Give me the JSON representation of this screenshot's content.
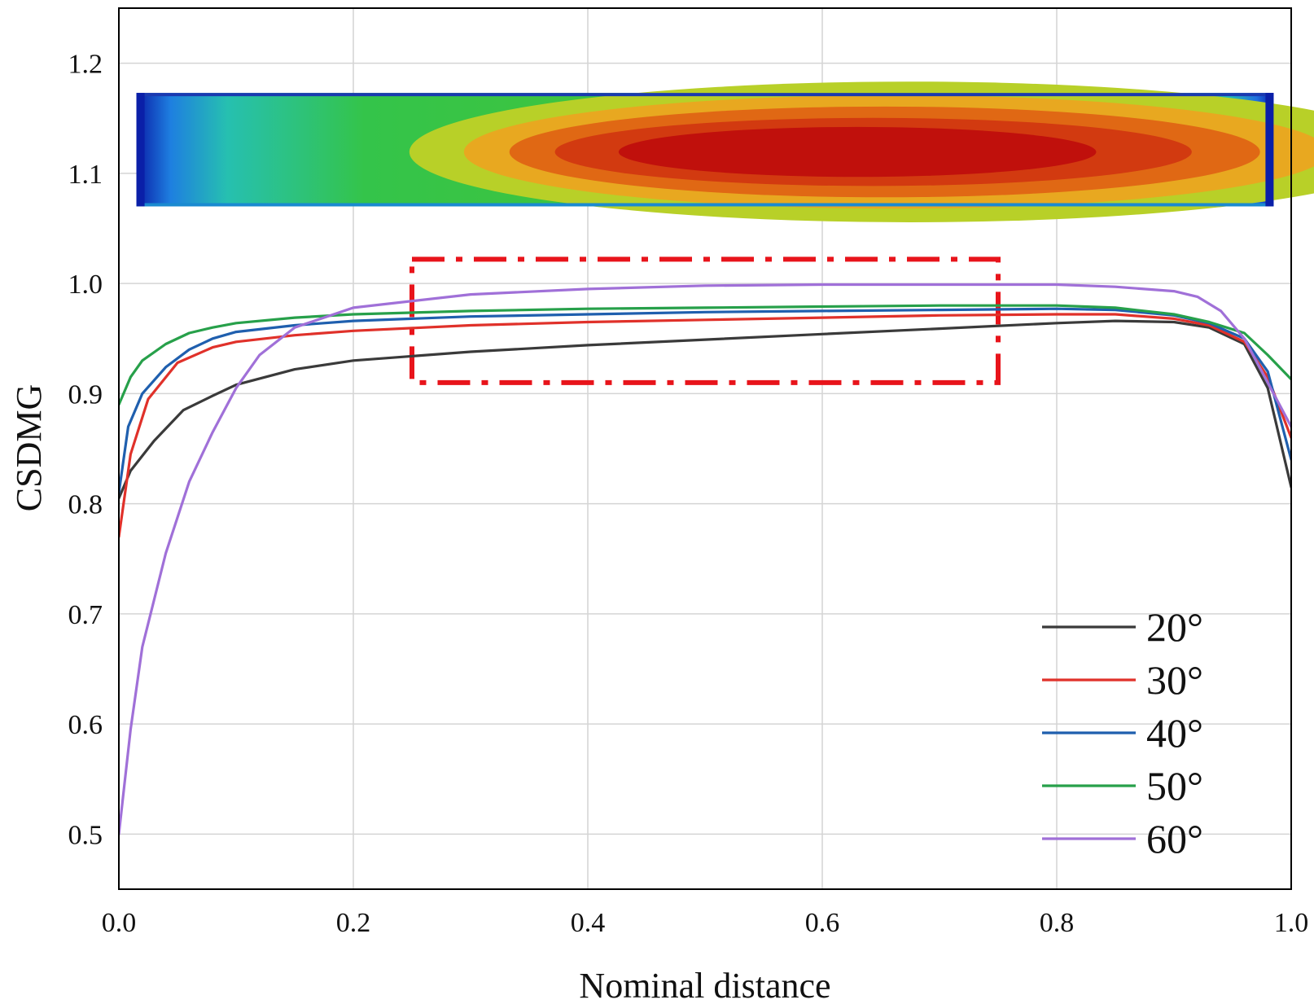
{
  "chart_data": {
    "type": "line",
    "xlabel": "Nominal distance",
    "ylabel": "CSDMG",
    "xlim": [
      0.0,
      1.0
    ],
    "ylim": [
      0.45,
      1.25
    ],
    "xticks": [
      "0.0",
      "0.2",
      "0.4",
      "0.6",
      "0.8",
      "1.0"
    ],
    "yticks": [
      "0.5",
      "0.6",
      "0.7",
      "0.8",
      "0.9",
      "1.0",
      "1.1",
      "1.2"
    ],
    "grid": true,
    "legend_position": "bottom-right",
    "series": [
      {
        "name": "20°",
        "color": "#3a3a3a",
        "x": [
          0.0,
          0.01,
          0.03,
          0.055,
          0.08,
          0.1,
          0.15,
          0.2,
          0.3,
          0.4,
          0.5,
          0.6,
          0.7,
          0.8,
          0.85,
          0.9,
          0.93,
          0.96,
          0.98,
          1.0
        ],
        "y": [
          0.805,
          0.83,
          0.857,
          0.885,
          0.898,
          0.908,
          0.922,
          0.93,
          0.938,
          0.944,
          0.949,
          0.954,
          0.959,
          0.964,
          0.966,
          0.965,
          0.96,
          0.945,
          0.905,
          0.815
        ]
      },
      {
        "name": "30°",
        "color": "#e0312a",
        "x": [
          0.0,
          0.01,
          0.025,
          0.05,
          0.08,
          0.1,
          0.15,
          0.2,
          0.3,
          0.4,
          0.5,
          0.6,
          0.7,
          0.8,
          0.85,
          0.9,
          0.93,
          0.96,
          0.98,
          1.0
        ],
        "y": [
          0.77,
          0.845,
          0.895,
          0.928,
          0.942,
          0.947,
          0.953,
          0.957,
          0.962,
          0.965,
          0.967,
          0.969,
          0.971,
          0.972,
          0.972,
          0.968,
          0.962,
          0.947,
          0.915,
          0.86
        ]
      },
      {
        "name": "40°",
        "color": "#1f5fae",
        "x": [
          0.0,
          0.008,
          0.02,
          0.04,
          0.06,
          0.08,
          0.1,
          0.15,
          0.2,
          0.3,
          0.4,
          0.5,
          0.6,
          0.7,
          0.8,
          0.85,
          0.9,
          0.93,
          0.96,
          0.98,
          1.0
        ],
        "y": [
          0.81,
          0.87,
          0.9,
          0.924,
          0.94,
          0.95,
          0.956,
          0.962,
          0.966,
          0.97,
          0.972,
          0.974,
          0.975,
          0.976,
          0.977,
          0.976,
          0.971,
          0.964,
          0.95,
          0.92,
          0.84
        ]
      },
      {
        "name": "50°",
        "color": "#27a04a",
        "x": [
          0.0,
          0.01,
          0.02,
          0.04,
          0.06,
          0.08,
          0.1,
          0.15,
          0.2,
          0.3,
          0.4,
          0.5,
          0.6,
          0.7,
          0.8,
          0.85,
          0.9,
          0.93,
          0.96,
          0.98,
          1.0
        ],
        "y": [
          0.89,
          0.915,
          0.93,
          0.945,
          0.955,
          0.96,
          0.964,
          0.969,
          0.972,
          0.975,
          0.977,
          0.978,
          0.979,
          0.98,
          0.98,
          0.978,
          0.972,
          0.965,
          0.955,
          0.935,
          0.913
        ]
      },
      {
        "name": "60°",
        "color": "#a070d8",
        "x": [
          0.0,
          0.01,
          0.02,
          0.04,
          0.06,
          0.08,
          0.1,
          0.12,
          0.15,
          0.2,
          0.3,
          0.4,
          0.5,
          0.6,
          0.7,
          0.8,
          0.85,
          0.9,
          0.92,
          0.94,
          0.96,
          0.98,
          1.0
        ],
        "y": [
          0.5,
          0.595,
          0.67,
          0.755,
          0.82,
          0.865,
          0.905,
          0.935,
          0.96,
          0.978,
          0.99,
          0.995,
          0.998,
          0.999,
          0.999,
          0.999,
          0.997,
          0.993,
          0.988,
          0.975,
          0.95,
          0.91,
          0.87
        ]
      }
    ],
    "annotations": {
      "highlight_box": {
        "x_range": [
          0.25,
          0.75
        ],
        "y_range": [
          0.91,
          1.022
        ],
        "style": "dash-dot",
        "color": "#e8141b"
      },
      "inset_contour": {
        "description_colors": [
          "#0a1fa8",
          "#1e8fe0",
          "#27c8a0",
          "#3cc43c",
          "#c8d020",
          "#f0a020",
          "#e05010",
          "#c8100c"
        ],
        "x_range": [
          0.015,
          0.985
        ],
        "y_range": [
          1.07,
          1.173
        ]
      }
    }
  }
}
